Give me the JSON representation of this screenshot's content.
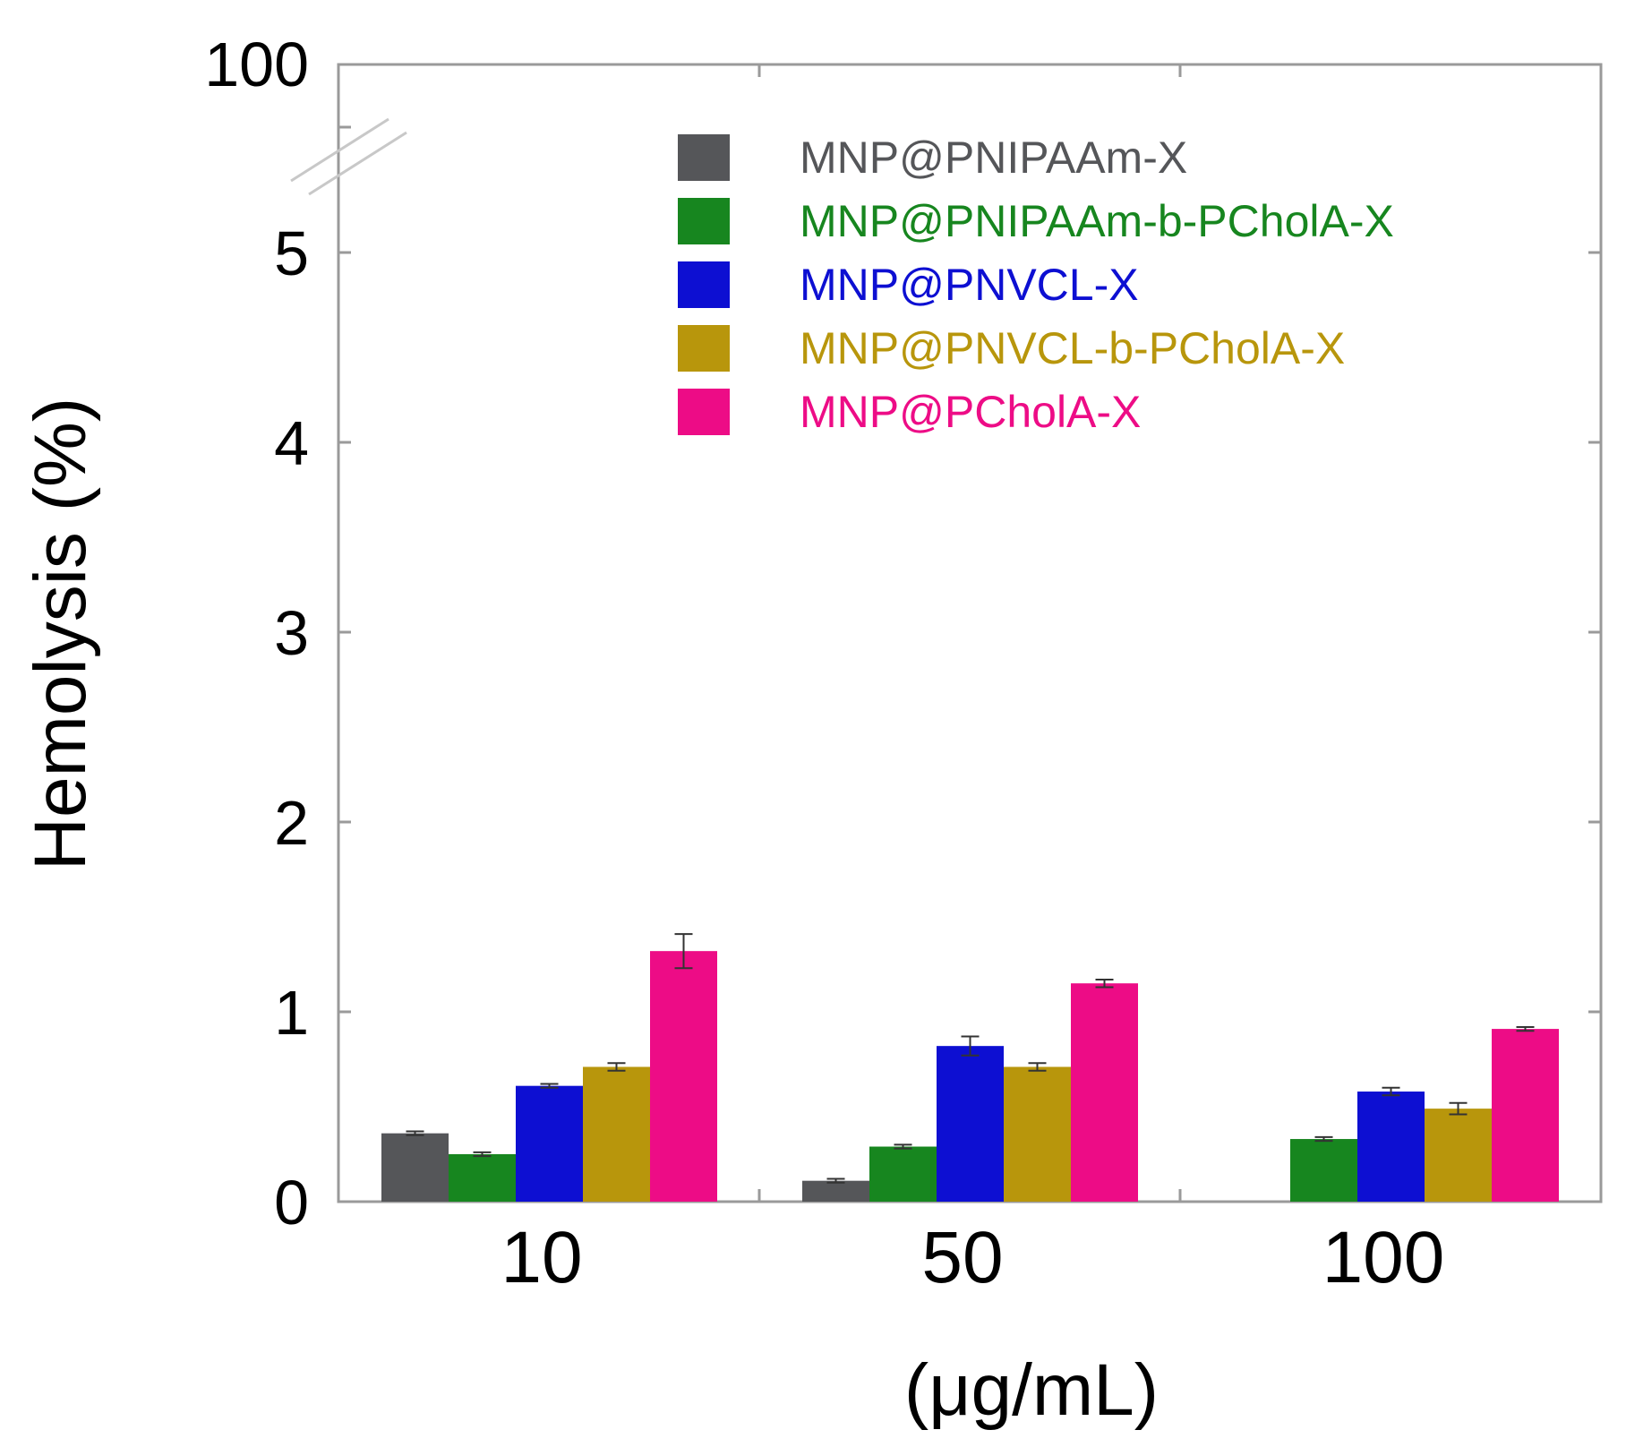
{
  "chart_data": {
    "type": "bar",
    "title": "",
    "xlabel": "(μg/mL)",
    "ylabel": "Hemolysis (%)",
    "categories": [
      "10",
      "50",
      "100"
    ],
    "ylim": [
      0,
      5.6
    ],
    "y_ticks": [
      0,
      1,
      2,
      3,
      4,
      5
    ],
    "y_tick_labels": [
      "0",
      "1",
      "2",
      "3",
      "4",
      "5"
    ],
    "y_break_top_label": "100",
    "axis_break": true,
    "grid": false,
    "legend_position": "top-right",
    "series": [
      {
        "name": "MNP@PNIPAAm-X",
        "color": "#555659",
        "values": [
          0.36,
          0.11,
          0
        ],
        "errors": [
          0.01,
          0.01,
          0
        ]
      },
      {
        "name": "MNP@PNIPAAm-b-PCholA-X",
        "color": "#17861f",
        "values": [
          0.25,
          0.29,
          0.33
        ],
        "errors": [
          0.01,
          0.01,
          0.01
        ]
      },
      {
        "name": "MNP@PNVCL-X",
        "color": "#0d0fd2",
        "values": [
          0.61,
          0.82,
          0.58
        ],
        "errors": [
          0.01,
          0.05,
          0.02
        ]
      },
      {
        "name": "MNP@PNVCL-b-PCholA-X",
        "color": "#b8960c",
        "values": [
          0.71,
          0.71,
          0.49
        ],
        "errors": [
          0.02,
          0.02,
          0.03
        ]
      },
      {
        "name": "MNP@PCholA-X",
        "color": "#ed0c86",
        "values": [
          1.32,
          1.15,
          0.91
        ],
        "errors": [
          0.09,
          0.02,
          0.01
        ]
      }
    ]
  }
}
